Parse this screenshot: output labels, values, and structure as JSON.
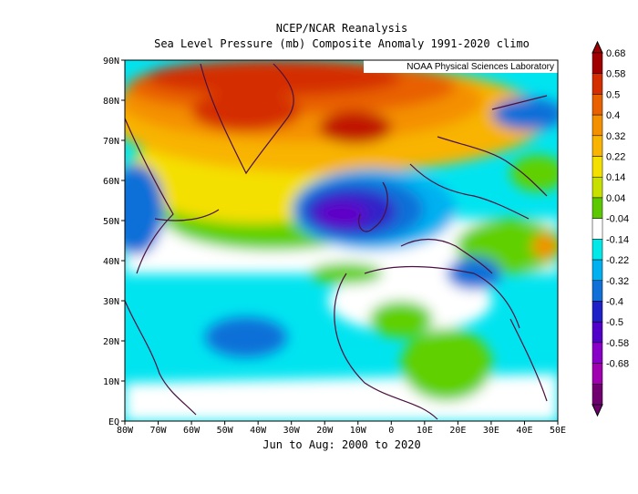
{
  "title": "NCEP/NCAR Reanalysis",
  "subtitle": "Sea Level Pressure (mb) Composite Anomaly 1991-2020 climo",
  "credit": "NOAA Physical Sciences Laboratory",
  "period": "Jun to Aug: 2000 to 2020",
  "lat_ticks": [
    "90N",
    "80N",
    "70N",
    "60N",
    "50N",
    "40N",
    "30N",
    "20N",
    "10N",
    "EQ"
  ],
  "lon_ticks": [
    "80W",
    "70W",
    "60W",
    "50W",
    "40W",
    "30W",
    "20W",
    "10W",
    "0",
    "10E",
    "20E",
    "30E",
    "40E",
    "50E"
  ],
  "colorbar": {
    "labels": [
      "0.68",
      "0.58",
      "0.5",
      "0.4",
      "0.32",
      "0.22",
      "0.14",
      "0.04",
      "-0.04",
      "-0.14",
      "-0.22",
      "-0.32",
      "-0.4",
      "-0.5",
      "-0.58",
      "-0.68"
    ],
    "colors": [
      "#a00000",
      "#d42d00",
      "#e86000",
      "#f49000",
      "#f8b400",
      "#f4e000",
      "#c8e000",
      "#5cc800",
      "#ffffff",
      "#00e8e8",
      "#00b0f0",
      "#1070d8",
      "#2020c8",
      "#5000c8",
      "#8800c8",
      "#a000b0",
      "#700070"
    ]
  }
}
